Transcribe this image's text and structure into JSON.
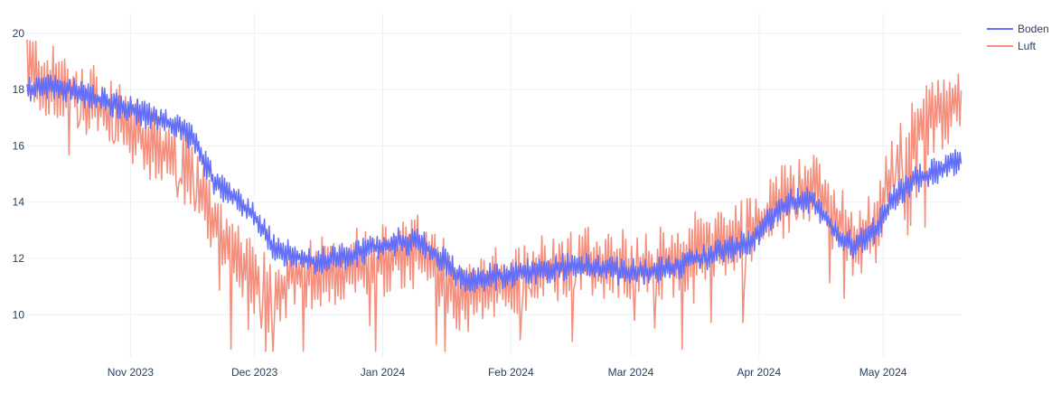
{
  "chart_data": {
    "type": "line",
    "title": "",
    "xlabel": "",
    "ylabel": "",
    "x_range": [
      "2023-10-07",
      "2024-05-20"
    ],
    "ylim": [
      8.5,
      20.7
    ],
    "grid": true,
    "legend_position": "top-right",
    "x_ticks": [
      {
        "date": "2023-11-01",
        "label": "Nov 2023"
      },
      {
        "date": "2023-12-01",
        "label": "Dec 2023"
      },
      {
        "date": "2024-01-01",
        "label": "Jan 2024"
      },
      {
        "date": "2024-02-01",
        "label": "Feb 2024"
      },
      {
        "date": "2024-03-01",
        "label": "Mar 2024"
      },
      {
        "date": "2024-04-01",
        "label": "Apr 2024"
      },
      {
        "date": "2024-05-01",
        "label": "May 2024"
      }
    ],
    "y_ticks": [
      10,
      12,
      14,
      16,
      18,
      20
    ],
    "series": [
      {
        "name": "Luft",
        "color": "#ef553b",
        "opacity": 0.65,
        "x": [
          "2023-10-07",
          "2023-10-12",
          "2023-10-17",
          "2023-10-22",
          "2023-10-27",
          "2023-11-01",
          "2023-11-06",
          "2023-11-11",
          "2023-11-16",
          "2023-11-21",
          "2023-11-26",
          "2023-12-01",
          "2023-12-06",
          "2023-12-11",
          "2023-12-16",
          "2023-12-21",
          "2023-12-26",
          "2023-12-31",
          "2024-01-05",
          "2024-01-10",
          "2024-01-15",
          "2024-01-20",
          "2024-01-25",
          "2024-01-30",
          "2024-02-04",
          "2024-02-09",
          "2024-02-14",
          "2024-02-19",
          "2024-02-24",
          "2024-02-29",
          "2024-03-05",
          "2024-03-10",
          "2024-03-15",
          "2024-03-20",
          "2024-03-25",
          "2024-03-30",
          "2024-04-04",
          "2024-04-09",
          "2024-04-14",
          "2024-04-19",
          "2024-04-24",
          "2024-04-29",
          "2024-05-04",
          "2024-05-09",
          "2024-05-14",
          "2024-05-19"
        ],
        "y": [
          18.8,
          18.3,
          18.0,
          17.6,
          17.2,
          16.6,
          16.0,
          15.6,
          15.0,
          13.3,
          12.0,
          11.2,
          10.5,
          11.6,
          11.5,
          11.7,
          11.8,
          11.8,
          12.1,
          12.2,
          11.5,
          10.6,
          10.8,
          11.2,
          11.3,
          11.6,
          11.8,
          12.0,
          11.8,
          11.7,
          11.8,
          11.8,
          12.2,
          12.6,
          12.7,
          12.9,
          13.8,
          14.2,
          14.5,
          13.6,
          12.6,
          13.0,
          15.5,
          16.5,
          17.1,
          17.6
        ]
      },
      {
        "name": "Boden",
        "color": "#636efa",
        "opacity": 1,
        "x": [
          "2023-10-07",
          "2023-10-12",
          "2023-10-17",
          "2023-10-22",
          "2023-10-27",
          "2023-11-01",
          "2023-11-06",
          "2023-11-11",
          "2023-11-16",
          "2023-11-21",
          "2023-11-26",
          "2023-12-01",
          "2023-12-06",
          "2023-12-11",
          "2023-12-16",
          "2023-12-21",
          "2023-12-26",
          "2023-12-31",
          "2024-01-05",
          "2024-01-10",
          "2024-01-15",
          "2024-01-20",
          "2024-01-25",
          "2024-01-30",
          "2024-02-04",
          "2024-02-09",
          "2024-02-14",
          "2024-02-19",
          "2024-02-24",
          "2024-02-29",
          "2024-03-05",
          "2024-03-10",
          "2024-03-15",
          "2024-03-20",
          "2024-03-25",
          "2024-03-30",
          "2024-04-04",
          "2024-04-09",
          "2024-04-14",
          "2024-04-19",
          "2024-04-24",
          "2024-04-29",
          "2024-05-04",
          "2024-05-09",
          "2024-05-14",
          "2024-05-19"
        ],
        "y": [
          18.0,
          18.1,
          18.0,
          17.8,
          17.5,
          17.3,
          17.0,
          16.8,
          16.3,
          14.8,
          14.2,
          13.5,
          12.3,
          12.1,
          11.9,
          12.0,
          12.2,
          12.4,
          12.6,
          12.6,
          12.0,
          11.3,
          11.3,
          11.4,
          11.5,
          11.6,
          11.7,
          11.7,
          11.6,
          11.5,
          11.5,
          11.6,
          11.9,
          12.1,
          12.3,
          12.6,
          13.5,
          14.0,
          14.1,
          13.0,
          12.4,
          13.0,
          14.2,
          14.8,
          15.1,
          15.5
        ]
      }
    ]
  }
}
